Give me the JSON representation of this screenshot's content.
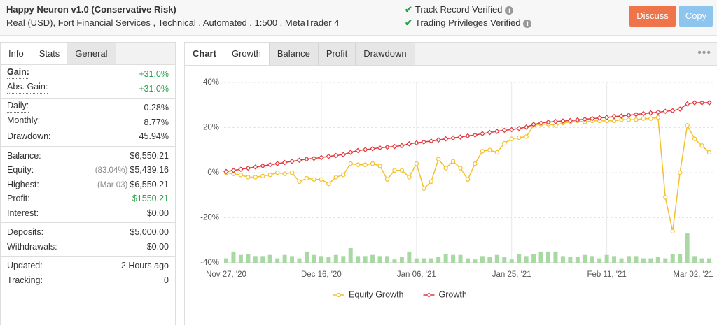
{
  "header": {
    "title": "Happy Neuron v1.0 (Conservative Risk)",
    "subtitle": {
      "before": "Real (USD), ",
      "link": "Fort Financial Services",
      "after": " , Technical , Automated , 1:500 , MetaTrader 4"
    },
    "verified": [
      "Track Record Verified",
      "Trading Privileges Verified"
    ],
    "buttons": [
      "Discuss",
      "Copy"
    ]
  },
  "sidebar": {
    "tabs": [
      "Info",
      "Stats",
      "General"
    ],
    "groups": [
      [
        {
          "label": "Gain:",
          "value": "+31.0%"
        },
        {
          "label": "Abs. Gain:",
          "value": "+31.0%"
        }
      ],
      [
        {
          "label": "Daily:",
          "value": "0.28%"
        },
        {
          "label": "Monthly:",
          "value": "8.77%"
        },
        {
          "label": "Drawdown:",
          "value": "45.94%"
        }
      ],
      [
        {
          "label": "Balance:",
          "value": "$6,550.21"
        },
        {
          "label": "Equity:",
          "note": "(83.04%)",
          "value": "$5,439.16"
        },
        {
          "label": "Highest:",
          "note": "(Mar 03)",
          "value": "$6,550.21"
        },
        {
          "label": "Profit:",
          "value": "$1550.21"
        },
        {
          "label": "Interest:",
          "value": "$0.00"
        }
      ],
      [
        {
          "label": "Deposits:",
          "value": "$5,000.00"
        },
        {
          "label": "Withdrawals:",
          "value": "$0.00"
        }
      ],
      [
        {
          "label": "Updated:",
          "value": "2 Hours ago"
        },
        {
          "label": "Tracking:",
          "value": "0"
        }
      ]
    ]
  },
  "chart_tabs": [
    "Chart",
    "Growth",
    "Balance",
    "Profit",
    "Drawdown"
  ],
  "chart_data": {
    "type": "line",
    "categories": [
      "Nov 27, '20",
      null,
      null,
      null,
      null,
      null,
      null,
      null,
      null,
      null,
      null,
      null,
      null,
      "Dec 16, '20",
      null,
      null,
      null,
      null,
      null,
      null,
      null,
      null,
      null,
      null,
      null,
      null,
      "Jan 06, '21",
      null,
      null,
      null,
      null,
      null,
      null,
      null,
      null,
      null,
      null,
      null,
      null,
      "Jan 25, '21",
      null,
      null,
      null,
      null,
      null,
      null,
      null,
      null,
      null,
      null,
      null,
      null,
      "Feb 11, '21",
      null,
      null,
      null,
      null,
      null,
      null,
      null,
      null,
      null,
      null,
      null,
      null,
      "Mar 02, '21",
      null
    ],
    "series": [
      {
        "type": "bar",
        "color": "#a9d9a3",
        "values": [
          -38,
          -35,
          -36.5,
          -36,
          -37,
          -37,
          -36.5,
          -38,
          -36.5,
          -37,
          -38,
          -35,
          -36.5,
          -37,
          -37.5,
          -36.5,
          -37,
          -33.5,
          -37,
          -37,
          -36.5,
          -37,
          -37,
          -38.5,
          -37.5,
          -35,
          -38,
          -38,
          -38,
          -37.5,
          -36,
          -36.5,
          -36.5,
          -38,
          -38.5,
          -37,
          -37.5,
          -36.5,
          -37.5,
          -38.5,
          -36,
          -37,
          -36,
          -35,
          -35,
          -35,
          -37,
          -37.5,
          -37.5,
          -36.5,
          -37,
          -38,
          -36.5,
          -37,
          -38,
          -37,
          -37,
          -38,
          -38,
          -37.5,
          -38,
          -36,
          -36,
          -27,
          -37,
          -38,
          -38
        ]
      },
      {
        "name": "Equity Growth",
        "color": "#f2c12e",
        "values": [
          0,
          -0.5,
          -1,
          -2,
          -2,
          -1.5,
          -1,
          0,
          -0.5,
          0,
          -4,
          -2.5,
          -3,
          -3,
          -5,
          -2,
          -1,
          4,
          3.5,
          3.5,
          4,
          3,
          -3,
          1,
          1,
          -2,
          4,
          -7,
          -4,
          6,
          2,
          5,
          2,
          -3,
          4,
          9.5,
          10,
          9,
          13,
          15,
          15.5,
          16,
          21,
          21.5,
          21.5,
          21,
          22,
          22.5,
          23,
          22.5,
          23,
          23,
          23,
          23,
          23.5,
          23.5,
          23.5,
          24,
          24,
          24.5,
          -11,
          -26,
          0,
          21,
          15,
          12,
          9
        ]
      },
      {
        "name": "Growth",
        "color": "#e0393e",
        "values": [
          0.5,
          1,
          1.5,
          2,
          2.5,
          3,
          3.5,
          4,
          4.5,
          5,
          5.5,
          6,
          6.3,
          6.7,
          7.2,
          7.6,
          8,
          9,
          9.8,
          10.2,
          10.6,
          11,
          11.3,
          11.6,
          12,
          12.8,
          13.2,
          13.6,
          14,
          14.5,
          15,
          15.4,
          15.8,
          16.3,
          16.7,
          17.3,
          17.8,
          18.3,
          18.8,
          19.1,
          19.6,
          20.2,
          21.4,
          22,
          22.4,
          22.7,
          22.9,
          23.1,
          23.4,
          23.7,
          24,
          24.3,
          24.5,
          24.9,
          25.1,
          25.5,
          25.8,
          26.2,
          26.5,
          26.8,
          27.2,
          27.5,
          28.2,
          30.5,
          31,
          31,
          31
        ]
      }
    ],
    "ylim": [
      -40,
      40
    ],
    "yticks": [
      {
        "value": -40,
        "label": "-40%"
      },
      {
        "value": -20,
        "label": "-20%"
      },
      {
        "value": 0,
        "label": "0%"
      },
      {
        "value": 20,
        "label": "20%"
      },
      {
        "value": 40,
        "label": "40%"
      }
    ],
    "grid": true,
    "legend": "bottom"
  }
}
